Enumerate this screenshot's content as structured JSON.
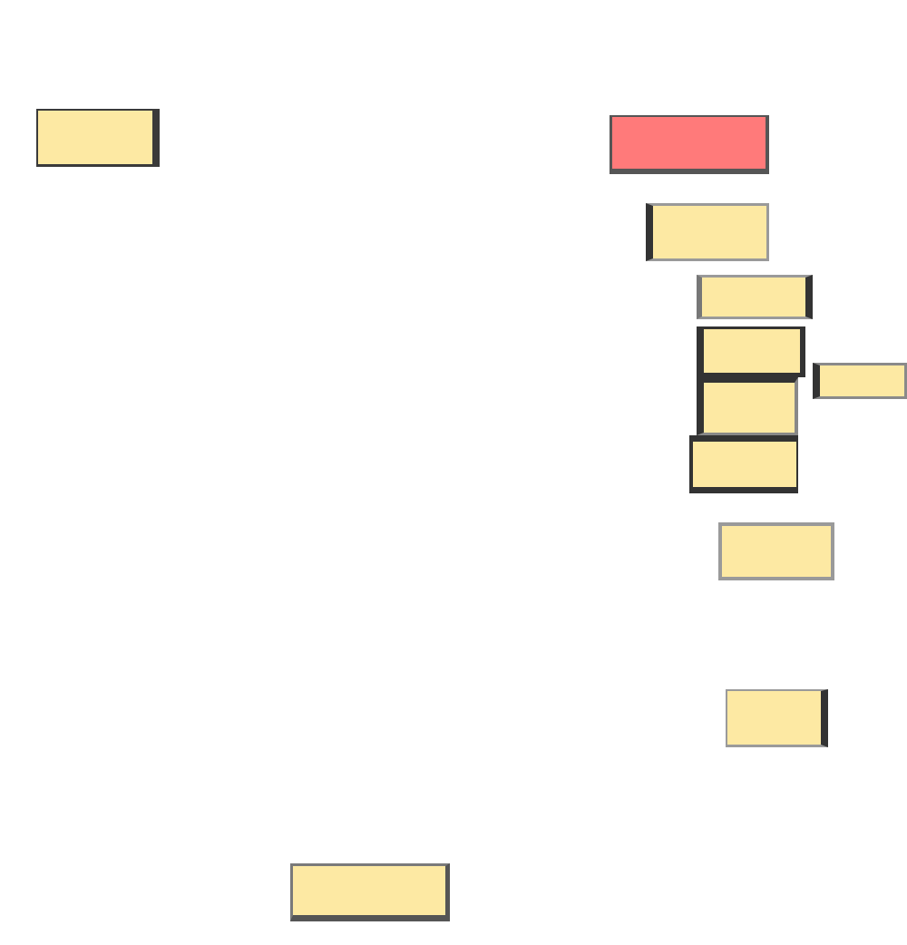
{
  "colors": {
    "background": "#ffffff",
    "node_fill": "#fde9a3",
    "highlight_fill": "#ff7a7a"
  },
  "nodes": [
    {
      "id": "n1",
      "label": "",
      "fill": "#fde9a3"
    },
    {
      "id": "n2",
      "label": "",
      "fill": "#ff7a7a"
    },
    {
      "id": "n3",
      "label": "",
      "fill": "#fde9a3"
    },
    {
      "id": "n4",
      "label": "",
      "fill": "#fde9a3"
    },
    {
      "id": "n5",
      "label": "",
      "fill": "#fde9a3"
    },
    {
      "id": "n6",
      "label": "",
      "fill": "#fde9a3"
    },
    {
      "id": "n7",
      "label": "",
      "fill": "#fde9a3"
    },
    {
      "id": "n8",
      "label": "",
      "fill": "#fde9a3"
    },
    {
      "id": "n9",
      "label": "",
      "fill": "#fde9a3"
    },
    {
      "id": "n10",
      "label": "",
      "fill": "#fde9a3"
    },
    {
      "id": "n11",
      "label": "",
      "fill": "#fde9a3"
    }
  ]
}
